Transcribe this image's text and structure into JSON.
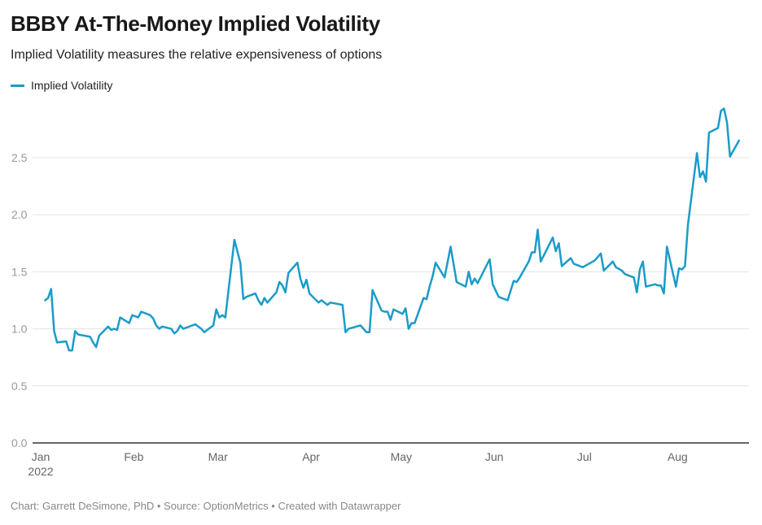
{
  "header": {
    "title": "BBBY At-The-Money Implied Volatility",
    "subtitle": "Implied Volatility measures the relative expensiveness of options"
  },
  "footer": {
    "text": "Chart: Garrett DeSimone, PhD • Source: OptionMetrics • Created with Datawrapper"
  },
  "colors": {
    "line": "#1b9bc9",
    "grid": "#e3e3e3",
    "axis": "#333333",
    "tick_label": "#9a9a9a"
  },
  "chart_data": {
    "type": "line",
    "title": "BBBY At-The-Money Implied Volatility",
    "subtitle": "Implied Volatility measures the relative expensiveness of options",
    "xlabel": "",
    "ylabel": "",
    "ylim": [
      0,
      3
    ],
    "xlim": [
      "2022-01-01",
      "2022-08-31"
    ],
    "grid": true,
    "legend_placement": "top-left",
    "y_ticks": [
      {
        "value": 0,
        "label": "0.0"
      },
      {
        "value": 0.5,
        "label": "0.5"
      },
      {
        "value": 1,
        "label": "1.0"
      },
      {
        "value": 1.5,
        "label": "1.5"
      },
      {
        "value": 2,
        "label": "2.0"
      },
      {
        "value": 2.5,
        "label": "2.5"
      }
    ],
    "x_ticks": [
      {
        "date": "2022-01-01",
        "label": "Jan",
        "sublabel": "2022"
      },
      {
        "date": "2022-02-01",
        "label": "Feb"
      },
      {
        "date": "2022-03-01",
        "label": "Mar"
      },
      {
        "date": "2022-04-01",
        "label": "Apr"
      },
      {
        "date": "2022-05-01",
        "label": "May"
      },
      {
        "date": "2022-06-01",
        "label": "Jun"
      },
      {
        "date": "2022-07-01",
        "label": "Jul"
      },
      {
        "date": "2022-08-01",
        "label": "Aug"
      }
    ],
    "series": [
      {
        "name": "Implied Volatility",
        "color": "#1b9bc9",
        "points": [
          [
            "2022-01-03",
            1.25
          ],
          [
            "2022-01-04",
            1.27
          ],
          [
            "2022-01-05",
            1.35
          ],
          [
            "2022-01-06",
            0.98
          ],
          [
            "2022-01-07",
            0.88
          ],
          [
            "2022-01-10",
            0.89
          ],
          [
            "2022-01-11",
            0.81
          ],
          [
            "2022-01-12",
            0.81
          ],
          [
            "2022-01-13",
            0.98
          ],
          [
            "2022-01-14",
            0.95
          ],
          [
            "2022-01-18",
            0.93
          ],
          [
            "2022-01-19",
            0.88
          ],
          [
            "2022-01-20",
            0.84
          ],
          [
            "2022-01-21",
            0.94
          ],
          [
            "2022-01-24",
            1.02
          ],
          [
            "2022-01-25",
            0.99
          ],
          [
            "2022-01-26",
            1.0
          ],
          [
            "2022-01-27",
            0.99
          ],
          [
            "2022-01-28",
            1.1
          ],
          [
            "2022-01-31",
            1.05
          ],
          [
            "2022-02-01",
            1.12
          ],
          [
            "2022-02-03",
            1.1
          ],
          [
            "2022-02-04",
            1.15
          ],
          [
            "2022-02-07",
            1.12
          ],
          [
            "2022-02-08",
            1.09
          ],
          [
            "2022-02-09",
            1.03
          ],
          [
            "2022-02-10",
            1.0
          ],
          [
            "2022-02-11",
            1.02
          ],
          [
            "2022-02-14",
            1.0
          ],
          [
            "2022-02-15",
            0.96
          ],
          [
            "2022-02-16",
            0.98
          ],
          [
            "2022-02-17",
            1.03
          ],
          [
            "2022-02-18",
            1.0
          ],
          [
            "2022-02-22",
            1.04
          ],
          [
            "2022-02-24",
            1.0
          ],
          [
            "2022-02-25",
            0.97
          ],
          [
            "2022-02-28",
            1.03
          ],
          [
            "2022-03-01",
            1.17
          ],
          [
            "2022-03-02",
            1.1
          ],
          [
            "2022-03-03",
            1.12
          ],
          [
            "2022-03-04",
            1.1
          ],
          [
            "2022-03-07",
            1.78
          ],
          [
            "2022-03-09",
            1.58
          ],
          [
            "2022-03-10",
            1.26
          ],
          [
            "2022-03-11",
            1.28
          ],
          [
            "2022-03-14",
            1.31
          ],
          [
            "2022-03-15",
            1.25
          ],
          [
            "2022-03-16",
            1.21
          ],
          [
            "2022-03-17",
            1.27
          ],
          [
            "2022-03-18",
            1.23
          ],
          [
            "2022-03-21",
            1.32
          ],
          [
            "2022-03-22",
            1.41
          ],
          [
            "2022-03-23",
            1.38
          ],
          [
            "2022-03-24",
            1.32
          ],
          [
            "2022-03-25",
            1.49
          ],
          [
            "2022-03-28",
            1.58
          ],
          [
            "2022-03-29",
            1.44
          ],
          [
            "2022-03-30",
            1.36
          ],
          [
            "2022-03-31",
            1.43
          ],
          [
            "2022-04-01",
            1.31
          ],
          [
            "2022-04-04",
            1.23
          ],
          [
            "2022-04-05",
            1.25
          ],
          [
            "2022-04-07",
            1.21
          ],
          [
            "2022-04-08",
            1.23
          ],
          [
            "2022-04-12",
            1.21
          ],
          [
            "2022-04-13",
            0.97
          ],
          [
            "2022-04-14",
            1.0
          ],
          [
            "2022-04-18",
            1.03
          ],
          [
            "2022-04-20",
            0.97
          ],
          [
            "2022-04-21",
            0.97
          ],
          [
            "2022-04-22",
            1.34
          ],
          [
            "2022-04-25",
            1.16
          ],
          [
            "2022-04-26",
            1.15
          ],
          [
            "2022-04-27",
            1.15
          ],
          [
            "2022-04-28",
            1.08
          ],
          [
            "2022-04-29",
            1.17
          ],
          [
            "2022-05-02",
            1.13
          ],
          [
            "2022-05-03",
            1.18
          ],
          [
            "2022-05-04",
            1.0
          ],
          [
            "2022-05-05",
            1.05
          ],
          [
            "2022-05-06",
            1.05
          ],
          [
            "2022-05-09",
            1.27
          ],
          [
            "2022-05-10",
            1.26
          ],
          [
            "2022-05-11",
            1.37
          ],
          [
            "2022-05-12",
            1.46
          ],
          [
            "2022-05-13",
            1.58
          ],
          [
            "2022-05-16",
            1.45
          ],
          [
            "2022-05-18",
            1.72
          ],
          [
            "2022-05-20",
            1.41
          ],
          [
            "2022-05-23",
            1.37
          ],
          [
            "2022-05-24",
            1.5
          ],
          [
            "2022-05-25",
            1.39
          ],
          [
            "2022-05-26",
            1.44
          ],
          [
            "2022-05-27",
            1.4
          ],
          [
            "2022-05-31",
            1.61
          ],
          [
            "2022-06-01",
            1.39
          ],
          [
            "2022-06-03",
            1.28
          ],
          [
            "2022-06-06",
            1.25
          ],
          [
            "2022-06-08",
            1.42
          ],
          [
            "2022-06-09",
            1.41
          ],
          [
            "2022-06-10",
            1.45
          ],
          [
            "2022-06-13",
            1.59
          ],
          [
            "2022-06-14",
            1.67
          ],
          [
            "2022-06-15",
            1.67
          ],
          [
            "2022-06-16",
            1.87
          ],
          [
            "2022-06-17",
            1.59
          ],
          [
            "2022-06-21",
            1.8
          ],
          [
            "2022-06-22",
            1.68
          ],
          [
            "2022-06-23",
            1.75
          ],
          [
            "2022-06-24",
            1.55
          ],
          [
            "2022-06-27",
            1.62
          ],
          [
            "2022-06-28",
            1.57
          ],
          [
            "2022-07-01",
            1.54
          ],
          [
            "2022-07-05",
            1.6
          ],
          [
            "2022-07-07",
            1.66
          ],
          [
            "2022-07-08",
            1.51
          ],
          [
            "2022-07-11",
            1.59
          ],
          [
            "2022-07-12",
            1.54
          ],
          [
            "2022-07-14",
            1.51
          ],
          [
            "2022-07-15",
            1.48
          ],
          [
            "2022-07-18",
            1.45
          ],
          [
            "2022-07-19",
            1.32
          ],
          [
            "2022-07-20",
            1.52
          ],
          [
            "2022-07-21",
            1.59
          ],
          [
            "2022-07-22",
            1.37
          ],
          [
            "2022-07-25",
            1.39
          ],
          [
            "2022-07-26",
            1.38
          ],
          [
            "2022-07-27",
            1.38
          ],
          [
            "2022-07-28",
            1.31
          ],
          [
            "2022-07-29",
            1.72
          ],
          [
            "2022-08-01",
            1.37
          ],
          [
            "2022-08-02",
            1.53
          ],
          [
            "2022-08-03",
            1.52
          ],
          [
            "2022-08-04",
            1.55
          ],
          [
            "2022-08-05",
            1.91
          ],
          [
            "2022-08-08",
            2.54
          ],
          [
            "2022-08-09",
            2.33
          ],
          [
            "2022-08-10",
            2.38
          ],
          [
            "2022-08-11",
            2.29
          ],
          [
            "2022-08-12",
            2.72
          ],
          [
            "2022-08-15",
            2.76
          ],
          [
            "2022-08-16",
            2.91
          ],
          [
            "2022-08-17",
            2.93
          ],
          [
            "2022-08-18",
            2.81
          ],
          [
            "2022-08-19",
            2.51
          ],
          [
            "2022-08-22",
            2.65
          ]
        ]
      }
    ]
  }
}
